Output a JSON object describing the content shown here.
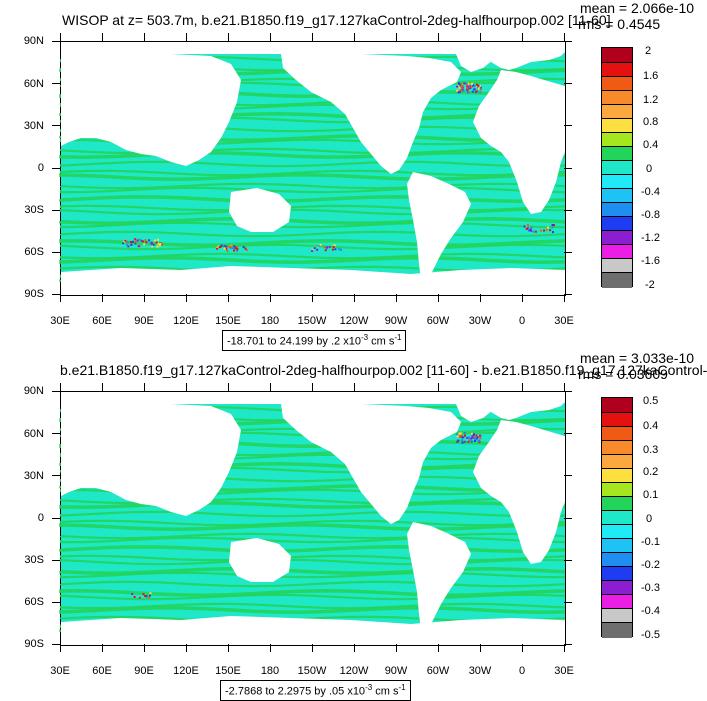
{
  "panels": [
    {
      "title": "WISOP at z= 503.7m, b.e21.B1850.f19_g17.127kaControl-2deg-halfhourpop.002 [11-60]",
      "mean_text": "mean = 2.066e-10",
      "rms_text": "rms = 0.4545",
      "range_text_prefix": "-18.701 to 24.199 by .2 x10",
      "range_exp": "-3",
      "range_unit_prefix": " cm s",
      "range_unit_exp": "-1",
      "colorbar_labels": [
        "2",
        "1.6",
        "1.2",
        "0.8",
        "0.4",
        "0",
        "-0.4",
        "-0.8",
        "-1.2",
        "-1.6",
        "-2"
      ]
    },
    {
      "title": "b.e21.B1850.f19_g17.127kaControl-2deg-halfhourpop.002 [11-60] - b.e21.B1850.f19_g17.127kaControl-",
      "mean_text": "mean = 3.033e-10",
      "rms_text": "rms = 0.03609",
      "range_text_prefix": "-2.7868 to 2.2975 by .05 x10",
      "range_exp": "-3",
      "range_unit_prefix": " cm s",
      "range_unit_exp": "-1",
      "colorbar_labels": [
        "0.5",
        "0.4",
        "0.3",
        "0.2",
        "0.1",
        "0",
        "-0.1",
        "-0.2",
        "-0.3",
        "-0.4",
        "-0.5"
      ]
    }
  ],
  "lat_labels": [
    "90N",
    "60N",
    "30N",
    "0",
    "30S",
    "60S",
    "90S"
  ],
  "lon_labels": [
    "30E",
    "60E",
    "90E",
    "120E",
    "150E",
    "180",
    "150W",
    "120W",
    "90W",
    "60W",
    "30W",
    "0",
    "30E"
  ],
  "colorbar_colors": [
    "#b0001e",
    "#e51010",
    "#f05a14",
    "#f88a2c",
    "#fba840",
    "#fde040",
    "#a6e61e",
    "#22d45a",
    "#1ee8c8",
    "#20eaf6",
    "#1ec2f5",
    "#1e8ef0",
    "#1e3cf2",
    "#8c1ed2",
    "#ec1ee6",
    "#c8c8c8",
    "#6e6e6e"
  ],
  "colors": {
    "ocean_base": "#1ee8c8",
    "ocean_band": "#22d45a",
    "land": "#ffffff"
  }
}
